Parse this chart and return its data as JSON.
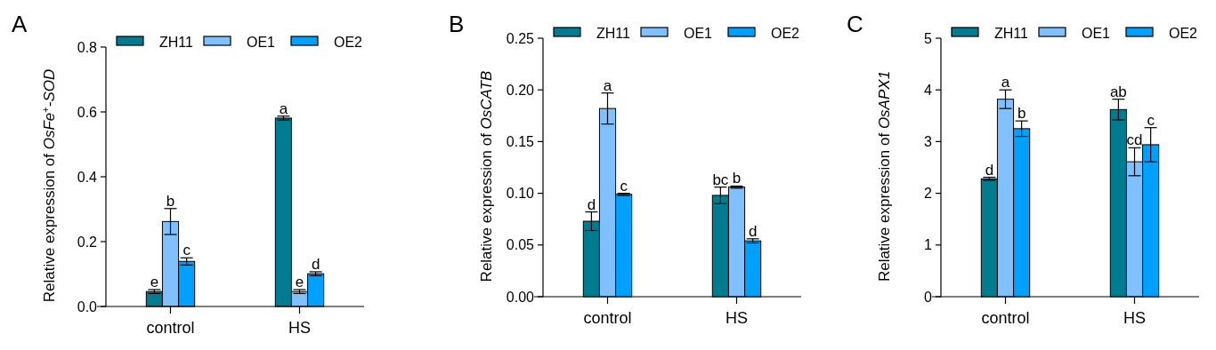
{
  "chart_data": [
    {
      "type": "bar",
      "title": "A",
      "ylabel": "Relative expression of OsFe$^{+}$-SOD",
      "categories": [
        "control",
        "HS"
      ],
      "ylim": [
        0,
        0.8
      ],
      "yticks": [
        {
          "value": 0,
          "label": "0.0"
        },
        0.2,
        0.4,
        0.6,
        0.8
      ],
      "legend": "top",
      "series": [
        {
          "name": "ZH11",
          "color": "#007b8f",
          "values": [
            0.046,
            0.581
          ],
          "errors": [
            0.006,
            0.006
          ],
          "value_labels": [
            "e",
            "a"
          ]
        },
        {
          "name": "OE1",
          "color": "#80c0ff",
          "values": [
            0.262,
            0.046
          ],
          "errors": [
            0.04,
            0.006
          ],
          "value_labels": [
            "b",
            "e"
          ]
        },
        {
          "name": "OE2",
          "color": "#00a0ff",
          "values": [
            0.139,
            0.101
          ],
          "errors": [
            0.011,
            0.006
          ],
          "value_labels": [
            "c",
            "d"
          ]
        }
      ]
    },
    {
      "type": "bar",
      "title": "B",
      "ylabel": "Relative expression of OsCATB",
      "categories": [
        "control",
        "HS"
      ],
      "ylim": [
        0,
        0.25
      ],
      "yticks": [
        {
          "value": 0,
          "label": "0.00"
        },
        {
          "value": 0.05,
          "label": "0.05"
        },
        {
          "value": 0.1,
          "label": "0.10"
        },
        0.15,
        {
          "value": 0.2,
          "label": "0.20"
        },
        0.25
      ],
      "legend": "top",
      "series": [
        {
          "name": "ZH11",
          "color": "#007b8f",
          "values": [
            0.073,
            0.098
          ],
          "errors": [
            0.009,
            0.008
          ],
          "value_labels": [
            "d",
            "bc"
          ]
        },
        {
          "name": "OE1",
          "color": "#80c0ff",
          "values": [
            0.182,
            0.106
          ],
          "errors": [
            0.015,
            0.001
          ],
          "value_labels": [
            "a",
            "b"
          ]
        },
        {
          "name": "OE2",
          "color": "#00a0ff",
          "values": [
            0.099,
            0.054
          ],
          "errors": [
            0.001,
            0.002
          ],
          "value_labels": [
            "c",
            "d"
          ]
        }
      ]
    },
    {
      "type": "bar",
      "title": "C",
      "ylabel": "Relative expression of OsAPX1",
      "categories": [
        "control",
        "HS"
      ],
      "ylim": [
        0,
        5
      ],
      "yticks": [
        0,
        1,
        2,
        3,
        4,
        5
      ],
      "legend": "top",
      "series": [
        {
          "name": "ZH11",
          "color": "#007b8f",
          "values": [
            2.28,
            3.62
          ],
          "errors": [
            0.03,
            0.2
          ],
          "value_labels": [
            "d",
            "ab"
          ]
        },
        {
          "name": "OE1",
          "color": "#80c0ff",
          "values": [
            3.82,
            2.61
          ],
          "errors": [
            0.18,
            0.27
          ],
          "value_labels": [
            "a",
            "cd"
          ]
        },
        {
          "name": "OE2",
          "color": "#00a0ff",
          "values": [
            3.25,
            2.94
          ],
          "errors": [
            0.15,
            0.33
          ],
          "value_labels": [
            "b",
            "c"
          ]
        }
      ]
    }
  ]
}
